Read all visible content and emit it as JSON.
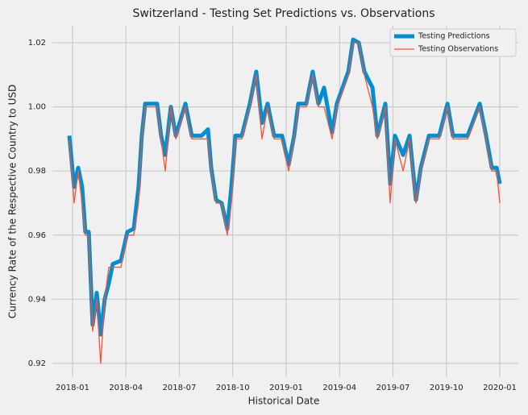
{
  "chart_data": {
    "type": "line",
    "title": "Switzerland - Testing Set Predictions vs. Observations",
    "x_label": "Historical Date",
    "y_label": "Currency Rate of the Respective Country to USD",
    "x": [
      -0.18,
      0.09,
      0.32,
      0.54,
      0.72,
      0.91,
      1.13,
      1.36,
      1.58,
      1.81,
      2.04,
      2.26,
      2.72,
      3.08,
      3.44,
      3.71,
      3.89,
      4.08,
      4.75,
      4.98,
      5.21,
      5.52,
      5.8,
      6.34,
      6.7,
      7.25,
      7.61,
      7.79,
      8.06,
      8.38,
      8.69,
      8.92,
      9.15,
      9.51,
      9.96,
      10.32,
      10.64,
      10.96,
      11.32,
      11.77,
      12.14,
      12.45,
      12.68,
      13.13,
      13.49,
      13.81,
      14.13,
      14.58,
      14.85,
      15.49,
      15.76,
      16.08,
      16.39,
      16.85,
      17.12,
      17.57,
      17.84,
      18.11,
      18.57,
      18.93,
      19.29,
      19.56,
      20.02,
      20.6,
      21.06,
      21.37,
      21.83,
      22.19,
      22.87,
      23.23,
      23.55,
      23.82,
      24.0
    ],
    "series": [
      {
        "name": "Testing Predictions",
        "color": "#008fd5",
        "width": 5,
        "values": [
          0.991,
          0.975,
          0.981,
          0.975,
          0.961,
          0.961,
          0.932,
          0.942,
          0.929,
          0.94,
          0.945,
          0.951,
          0.952,
          0.961,
          0.962,
          0.975,
          0.991,
          1.001,
          1.001,
          0.991,
          0.985,
          1.0,
          0.991,
          1.001,
          0.991,
          0.991,
          0.993,
          0.981,
          0.971,
          0.97,
          0.962,
          0.975,
          0.991,
          0.991,
          1.001,
          1.011,
          0.995,
          1.001,
          0.991,
          0.991,
          0.982,
          0.991,
          1.001,
          1.001,
          1.011,
          1.001,
          1.006,
          0.992,
          1.001,
          1.011,
          1.021,
          1.02,
          1.011,
          1.006,
          0.991,
          1.001,
          0.976,
          0.991,
          0.985,
          0.991,
          0.971,
          0.981,
          0.991,
          0.991,
          1.001,
          0.991,
          0.991,
          0.991,
          1.001,
          0.991,
          0.981,
          0.981,
          0.976
        ]
      },
      {
        "name": "Testing Observations",
        "color": "#fc4f30",
        "width": 1.3,
        "values": [
          0.99,
          0.97,
          0.98,
          0.97,
          0.96,
          0.96,
          0.93,
          0.94,
          0.92,
          0.94,
          0.95,
          0.95,
          0.95,
          0.96,
          0.96,
          0.97,
          0.99,
          1.0,
          1.0,
          0.99,
          0.98,
          1.0,
          0.99,
          1.0,
          0.99,
          0.99,
          0.99,
          0.98,
          0.97,
          0.97,
          0.96,
          0.97,
          0.99,
          0.99,
          1.0,
          1.01,
          0.99,
          1.0,
          0.99,
          0.99,
          0.98,
          0.99,
          1.0,
          1.0,
          1.01,
          1.0,
          1.0,
          0.99,
          1.0,
          1.01,
          1.02,
          1.02,
          1.01,
          1.0,
          0.99,
          1.0,
          0.97,
          0.99,
          0.98,
          0.99,
          0.97,
          0.98,
          0.99,
          0.99,
          1.0,
          0.99,
          0.99,
          0.99,
          1.0,
          0.99,
          0.98,
          0.98,
          0.97
        ]
      }
    ],
    "xlim": [
      -1.13,
      25.04
    ],
    "xticks": [
      {
        "value": 0,
        "label": "2018-01"
      },
      {
        "value": 3,
        "label": "2018-04"
      },
      {
        "value": 6,
        "label": "2018-07"
      },
      {
        "value": 9,
        "label": "2018-10"
      },
      {
        "value": 12,
        "label": "2019-01"
      },
      {
        "value": 15,
        "label": "2019-04"
      },
      {
        "value": 18,
        "label": "2019-07"
      },
      {
        "value": 21,
        "label": "2019-10"
      },
      {
        "value": 24,
        "label": "2020-01"
      }
    ],
    "ylim": [
      0.9157,
      1.0253
    ],
    "yticks": [
      0.92,
      0.94,
      0.96,
      0.98,
      {
        "value": 1.0,
        "label": "1.00"
      },
      1.02
    ],
    "grid": true,
    "legend": "upper right"
  }
}
